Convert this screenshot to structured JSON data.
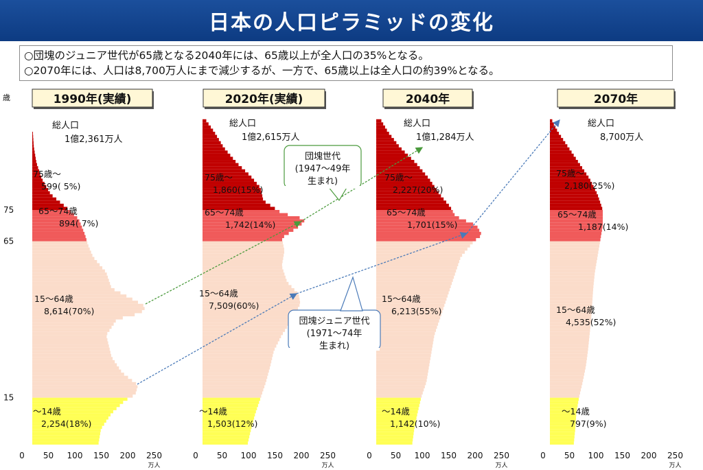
{
  "page_title": "日本の人口ピラミッドの変化",
  "bullets": [
    "○団塊のジュニア世代が65歳となる2040年には、65歳以上が全人口の35%となる。",
    "○2070年には、人口は8,700万人にまで減少するが、一方で、65歳以上は全人口の約39%となる。"
  ],
  "colors": {
    "age75plus": "#c00000",
    "age65to74": "#f05a5a",
    "age15to64": "#fbdcca",
    "under15": "#ffff55",
    "title_bar": "#0d3b82",
    "dantai_arrow": "#4a9a3c",
    "junior_arrow": "#4a7ab8"
  },
  "chart_data": {
    "type": "bar",
    "orientation": "horizontal",
    "y_axis_label": "歳",
    "y_ticks": [
      15,
      65,
      75
    ],
    "x_ticks": [
      0,
      50,
      100,
      150,
      200,
      250
    ],
    "x_unit": "万人",
    "xlim": [
      0,
      250
    ],
    "ylim": [
      0,
      105
    ],
    "panels": [
      {
        "year_label": "1990年(実績)",
        "total_label": "総人口",
        "total_value": "1億2,361万人",
        "groups": [
          {
            "age_label": "75歳～",
            "value_label": "599( 5%)"
          },
          {
            "age_label": "65～74歳",
            "value_label": "894( 7%)"
          },
          {
            "age_label": "15～64歳",
            "value_label": "8,614(70%)"
          },
          {
            "age_label": "～14歳",
            "value_label": "2,254(18%)"
          }
        ],
        "profile": [
          [
            0,
            125
          ],
          [
            5,
            130
          ],
          [
            10,
            150
          ],
          [
            14,
            175
          ],
          [
            16,
            195
          ],
          [
            19,
            200
          ],
          [
            23,
            170
          ],
          [
            28,
            150
          ],
          [
            35,
            140
          ],
          [
            40,
            160
          ],
          [
            42,
            205
          ],
          [
            44,
            215
          ],
          [
            46,
            195
          ],
          [
            50,
            150
          ],
          [
            55,
            140
          ],
          [
            60,
            115
          ],
          [
            64,
            105
          ],
          [
            67,
            100
          ],
          [
            72,
            88
          ],
          [
            75,
            70
          ],
          [
            80,
            35
          ],
          [
            85,
            18
          ],
          [
            90,
            8
          ],
          [
            95,
            3
          ],
          [
            100,
            1
          ]
        ]
      },
      {
        "year_label": "2020年(実績)",
        "total_label": "総人口",
        "total_value": "1億2,615万人",
        "groups": [
          {
            "age_label": "75歳～",
            "value_label": "1,860(15%)"
          },
          {
            "age_label": "65～74歳",
            "value_label": "1,742(14%)"
          },
          {
            "age_label": "15～64歳",
            "value_label": "7,509(60%)"
          },
          {
            "age_label": "～14歳",
            "value_label": "1,503(12%)"
          }
        ],
        "profile": [
          [
            0,
            85
          ],
          [
            5,
            92
          ],
          [
            10,
            100
          ],
          [
            15,
            110
          ],
          [
            20,
            120
          ],
          [
            25,
            128
          ],
          [
            30,
            135
          ],
          [
            35,
            150
          ],
          [
            40,
            170
          ],
          [
            45,
            185
          ],
          [
            48,
            182
          ],
          [
            52,
            160
          ],
          [
            57,
            150
          ],
          [
            62,
            155
          ],
          [
            66,
            150
          ],
          [
            70,
            185
          ],
          [
            72,
            195
          ],
          [
            74,
            150
          ],
          [
            78,
            115
          ],
          [
            82,
            110
          ],
          [
            86,
            90
          ],
          [
            90,
            65
          ],
          [
            95,
            40
          ],
          [
            100,
            22
          ],
          [
            104,
            5
          ]
        ]
      },
      {
        "year_label": "2040年",
        "total_label": "総人口",
        "total_value": "1億1,284万人",
        "groups": [
          {
            "age_label": "75歳～",
            "value_label": "2,227(20%)"
          },
          {
            "age_label": "65～74歳",
            "value_label": "1,701(15%)"
          },
          {
            "age_label": "15～64歳",
            "value_label": "6,213(55%)"
          },
          {
            "age_label": "～14歳",
            "value_label": "1,142(10%)"
          }
        ],
        "profile": [
          [
            0,
            68
          ],
          [
            5,
            72
          ],
          [
            10,
            78
          ],
          [
            15,
            85
          ],
          [
            20,
            95
          ],
          [
            25,
            100
          ],
          [
            30,
            105
          ],
          [
            35,
            110
          ],
          [
            40,
            120
          ],
          [
            45,
            130
          ],
          [
            50,
            140
          ],
          [
            55,
            150
          ],
          [
            60,
            160
          ],
          [
            65,
            185
          ],
          [
            67,
            200
          ],
          [
            70,
            190
          ],
          [
            73,
            150
          ],
          [
            76,
            140
          ],
          [
            80,
            120
          ],
          [
            85,
            100
          ],
          [
            90,
            75
          ],
          [
            95,
            45
          ],
          [
            100,
            22
          ],
          [
            104,
            8
          ]
        ]
      },
      {
        "year_label": "2070年",
        "total_label": "総人口",
        "total_value": "8,700万人",
        "groups": [
          {
            "age_label": "75歳～",
            "value_label": "2,180(25%)"
          },
          {
            "age_label": "65～74歳",
            "value_label": "1,187(14%)"
          },
          {
            "age_label": "15～64歳",
            "value_label": "4,535(52%)"
          },
          {
            "age_label": "～14歳",
            "value_label": "797(9%)"
          }
        ],
        "profile": [
          [
            0,
            45
          ],
          [
            5,
            48
          ],
          [
            10,
            50
          ],
          [
            15,
            55
          ],
          [
            20,
            62
          ],
          [
            25,
            68
          ],
          [
            30,
            72
          ],
          [
            35,
            75
          ],
          [
            40,
            78
          ],
          [
            45,
            80
          ],
          [
            50,
            82
          ],
          [
            55,
            85
          ],
          [
            60,
            90
          ],
          [
            65,
            95
          ],
          [
            70,
            100
          ],
          [
            75,
            100
          ],
          [
            80,
            90
          ],
          [
            85,
            75
          ],
          [
            90,
            55
          ],
          [
            95,
            35
          ],
          [
            100,
            15
          ],
          [
            104,
            3
          ]
        ]
      }
    ],
    "annotations": [
      {
        "label": "団塊世代\n(1947～49年\n生まれ)"
      },
      {
        "label": "団塊ジュニア世代\n(1971～74年\n生まれ)"
      }
    ]
  }
}
